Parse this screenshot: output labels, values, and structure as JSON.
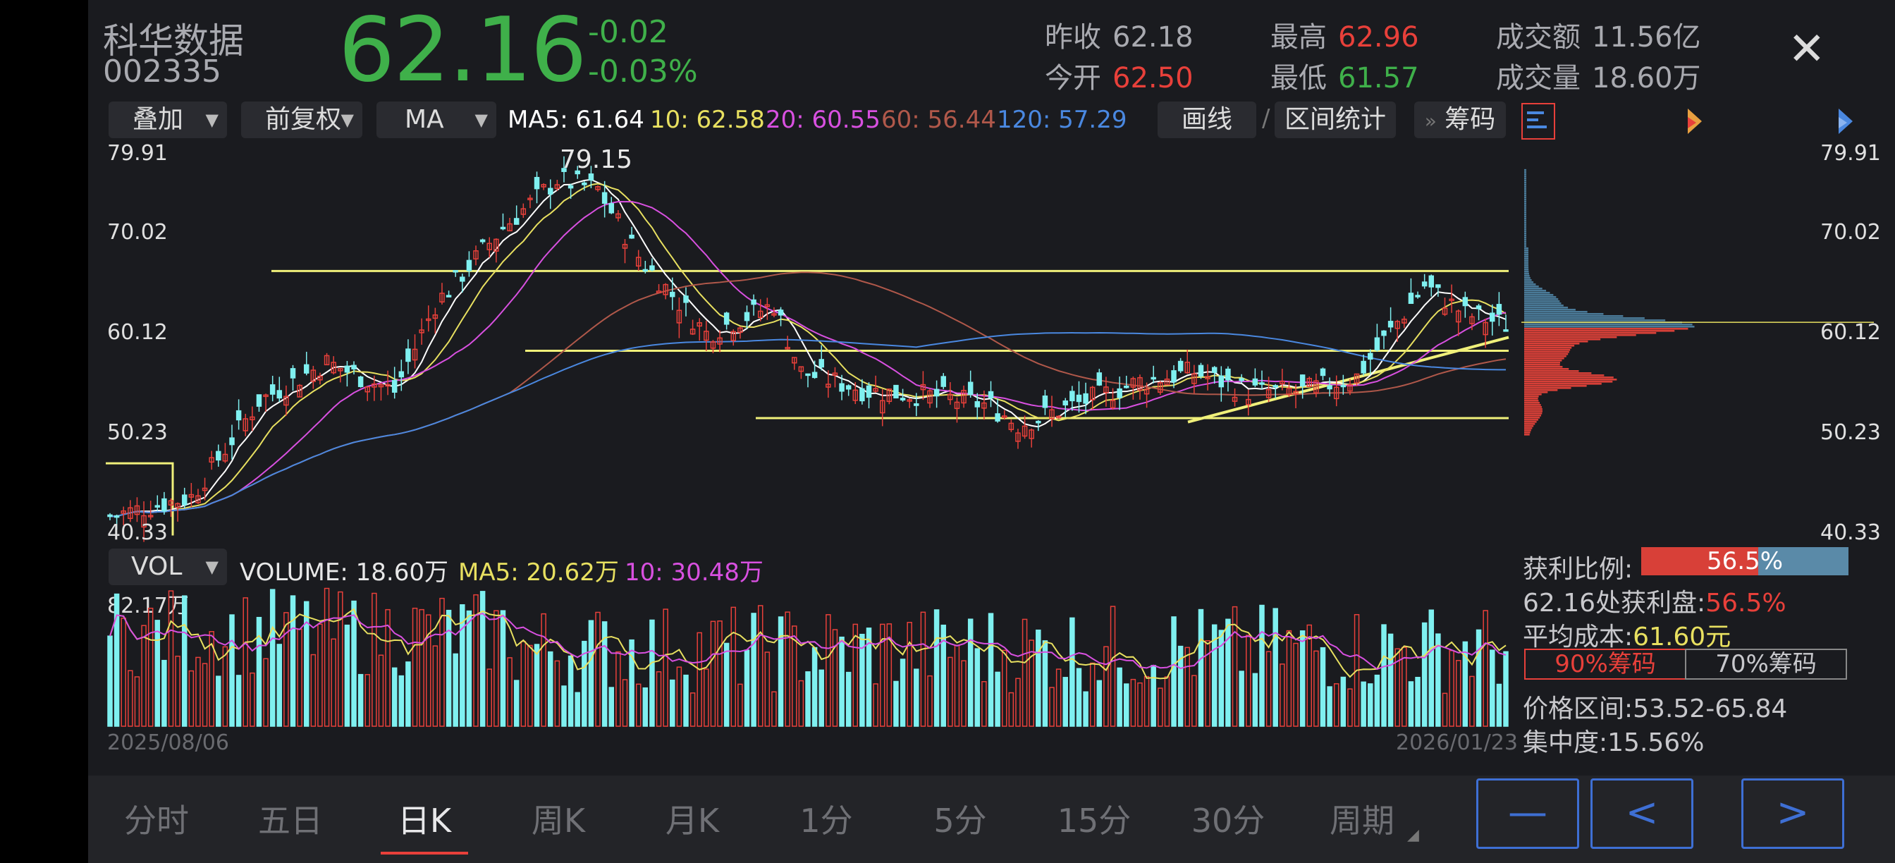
{
  "stock": {
    "name": "科华数据",
    "code": "002335",
    "price": "62.16",
    "change": "-0.02",
    "change_pct": "-0.03%"
  },
  "stats": {
    "prev_close_label": "昨收",
    "prev_close": "62.18",
    "open_label": "今开",
    "open": "62.50",
    "high_label": "最高",
    "high": "62.96",
    "low_label": "最低",
    "low": "61.57",
    "amount_label": "成交额",
    "amount": "11.56亿",
    "volume_label": "成交量",
    "volume": "18.60万"
  },
  "toolbar": {
    "overlay": "叠加",
    "adjust": "前复权",
    "indicator": "MA",
    "ma5": "MA5: 61.64",
    "ma10": "10: 62.58",
    "ma20": "20: 60.55",
    "ma60": "60: 56.44",
    "ma120": "120: 57.29",
    "draw": "画线",
    "range_stat": "区间统计",
    "chips_toggle": "»",
    "chips": "筹码"
  },
  "price_axis": {
    "top": "79.91",
    "l2": "70.02",
    "l3": "60.12",
    "l4": "50.23",
    "bottom": "40.33",
    "peak_label": "79.15"
  },
  "volume_panel": {
    "indicator": "VOL",
    "volume": "VOLUME: 18.60万",
    "ma5": "MA5: 20.62万",
    "ma10": "10: 30.48万",
    "max": "82.17万"
  },
  "dates": {
    "start": "2025/08/06",
    "end": "2026/01/23"
  },
  "chips_panel": {
    "profit_ratio_label": "获利比例:",
    "profit_ratio": "56.5%",
    "profit_ratio_value": 0.565,
    "profit_at_label": "62.16处获利盘:",
    "profit_at": "56.5%",
    "avg_cost_label": "平均成本:",
    "avg_cost": "61.60元",
    "tab_90": "90%筹码",
    "tab_70": "70%筹码",
    "range_label": "价格区间:",
    "range": "53.52-65.84",
    "concentration_label": "集中度:",
    "concentration": "15.56%"
  },
  "tabs": [
    "分时",
    "五日",
    "日K",
    "周K",
    "月K",
    "1分",
    "5分",
    "15分",
    "30分",
    "周期"
  ],
  "active_tab": "日K",
  "colors": {
    "up": "#e8403a",
    "down": "#7ff0f0",
    "ma5": "#ffffff",
    "ma10": "#e8e060",
    "ma20": "#d850e0",
    "ma60": "#b0584a",
    "ma120": "#4a88e0",
    "trend": "#f0f07a",
    "nav": "#3e6fd4"
  }
}
